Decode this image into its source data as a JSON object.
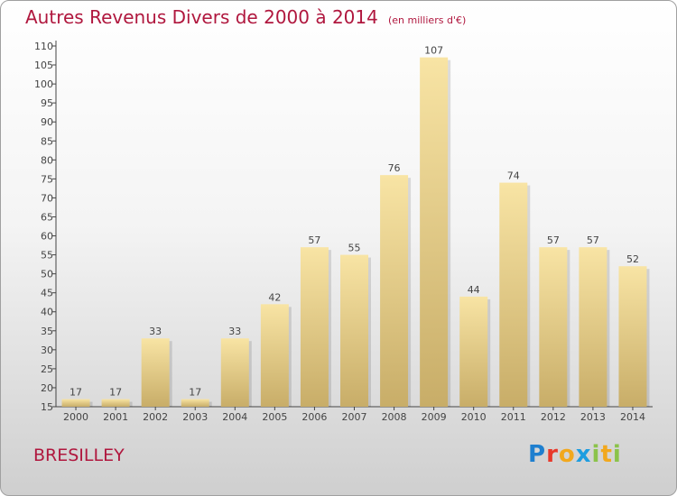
{
  "header": {
    "title": "Autres Revenus Divers de 2000 à 2014",
    "subtitle": "(en milliers d'€)"
  },
  "footer": {
    "city": "BRESILLEY",
    "logo_letters": [
      "P",
      "r",
      "o",
      "x",
      "i",
      "t",
      "i"
    ]
  },
  "colors": {
    "title": "#b0173e",
    "bar_light": "#f8e4a4",
    "bar_dark": "#c8ad68",
    "logo": [
      "#1e7fcf",
      "#e8392b",
      "#f2a81d",
      "#1e9de0",
      "#8bc34a",
      "#f2a81d",
      "#8bc34a"
    ]
  },
  "chart_data": {
    "type": "bar",
    "categories": [
      "2000",
      "2001",
      "2002",
      "2003",
      "2004",
      "2005",
      "2006",
      "2007",
      "2008",
      "2009",
      "2010",
      "2011",
      "2012",
      "2013",
      "2014"
    ],
    "values": [
      17,
      17,
      33,
      17,
      33,
      42,
      57,
      55,
      76,
      107,
      44,
      74,
      57,
      57,
      52
    ],
    "ylim": [
      15,
      110
    ],
    "yticks": [
      15,
      20,
      25,
      30,
      35,
      40,
      45,
      50,
      55,
      60,
      65,
      70,
      75,
      80,
      85,
      90,
      95,
      100,
      105,
      110
    ],
    "grid": false,
    "legend": "none"
  }
}
